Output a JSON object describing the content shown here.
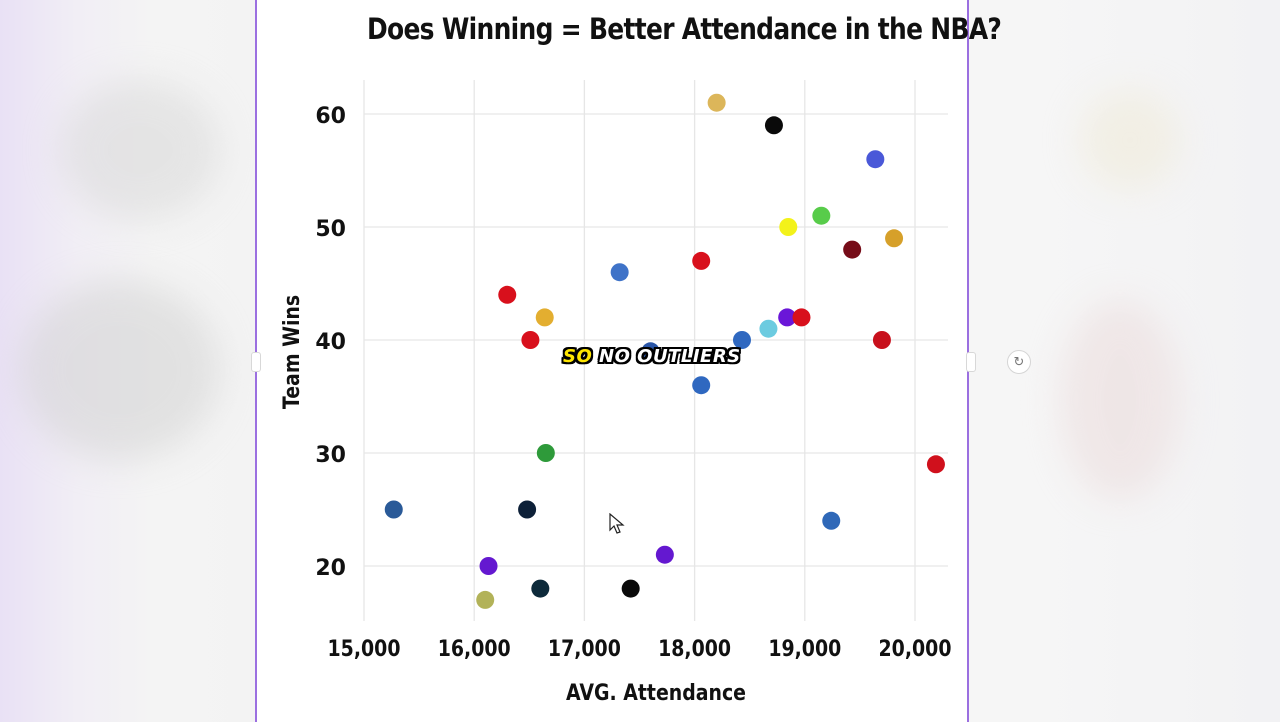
{
  "chart_data": {
    "type": "scatter",
    "title": "Does Winning = Better Attendance in the NBA?",
    "xlabel": "AVG. Attendance",
    "ylabel": "Team Wins",
    "xlim": [
      15000,
      20300
    ],
    "ylim": [
      15,
      63
    ],
    "x_ticks": [
      15000,
      16000,
      17000,
      18000,
      19000,
      20000
    ],
    "x_tick_labels": [
      "15,000",
      "16,000",
      "17,000",
      "18,000",
      "19,000",
      "20,000"
    ],
    "y_ticks": [
      20,
      30,
      40,
      50,
      60
    ],
    "y_tick_labels": [
      "20",
      "30",
      "40",
      "50",
      "60"
    ],
    "grid": true,
    "points": [
      {
        "x": 18200,
        "y": 61,
        "color": "#dcb65a"
      },
      {
        "x": 18720,
        "y": 59,
        "color": "#0a0a0a"
      },
      {
        "x": 19640,
        "y": 56,
        "color": "#4a58d8"
      },
      {
        "x": 19150,
        "y": 51,
        "color": "#58cc4a"
      },
      {
        "x": 18850,
        "y": 50,
        "color": "#f3f21a"
      },
      {
        "x": 19430,
        "y": 48,
        "color": "#760c18"
      },
      {
        "x": 19810,
        "y": 49,
        "color": "#d6a02a"
      },
      {
        "x": 18060,
        "y": 47,
        "color": "#d8101c"
      },
      {
        "x": 17320,
        "y": 46,
        "color": "#3f73c8"
      },
      {
        "x": 16300,
        "y": 44,
        "color": "#d8101c"
      },
      {
        "x": 16640,
        "y": 42,
        "color": "#e3ae30"
      },
      {
        "x": 16510,
        "y": 40,
        "color": "#d8101c"
      },
      {
        "x": 18840,
        "y": 42,
        "color": "#6a16d8"
      },
      {
        "x": 18970,
        "y": 42,
        "color": "#d8101c"
      },
      {
        "x": 18670,
        "y": 41,
        "color": "#6ccbe0"
      },
      {
        "x": 18430,
        "y": 40,
        "color": "#2f68c0"
      },
      {
        "x": 19700,
        "y": 40,
        "color": "#c8101c"
      },
      {
        "x": 17600,
        "y": 39,
        "color": "#2a56a8"
      },
      {
        "x": 18060,
        "y": 36,
        "color": "#2f68c0"
      },
      {
        "x": 16650,
        "y": 30,
        "color": "#2e9a3a"
      },
      {
        "x": 20190,
        "y": 29,
        "color": "#d0101c"
      },
      {
        "x": 15270,
        "y": 25,
        "color": "#2a5a98"
      },
      {
        "x": 16480,
        "y": 25,
        "color": "#0d2038"
      },
      {
        "x": 19240,
        "y": 24,
        "color": "#2f68b8"
      },
      {
        "x": 17730,
        "y": 21,
        "color": "#6418d0"
      },
      {
        "x": 16130,
        "y": 20,
        "color": "#6418d0"
      },
      {
        "x": 16600,
        "y": 18,
        "color": "#0d2a3a"
      },
      {
        "x": 17420,
        "y": 18,
        "color": "#0a0a0a"
      },
      {
        "x": 16100,
        "y": 17,
        "color": "#b2b258"
      }
    ]
  },
  "caption": {
    "highlight": "SO",
    "rest": " NO OUTLIERS"
  },
  "icons": {
    "rotate": "↻"
  }
}
